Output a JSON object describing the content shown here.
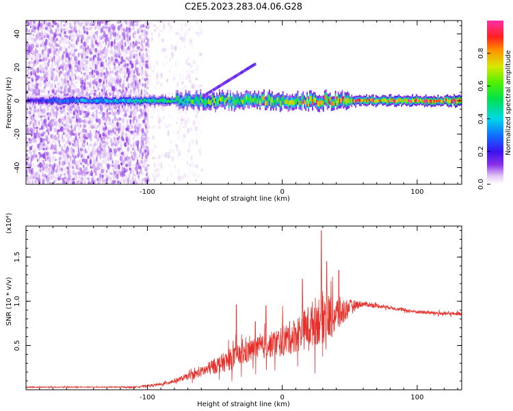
{
  "title": "C2E5.2023.283.04.06.G28",
  "chart_data": [
    {
      "type": "heatmap",
      "title": "C2E5.2023.283.04.06.G28",
      "xlabel": "Height of straight line (km)",
      "ylabel": "Frequency (Hz)",
      "xlim": [
        -190,
        133
      ],
      "ylim": [
        -50,
        48
      ],
      "x_ticks": [
        -100,
        0,
        100
      ],
      "x_tick_labels": [
        "-100",
        "0",
        "100"
      ],
      "y_ticks": [
        -40,
        -20,
        0,
        20,
        40
      ],
      "y_tick_labels": [
        "-40",
        "-20",
        "0",
        "20",
        "40"
      ],
      "grid": false,
      "colorbar": {
        "label": "Normalized spectral amplitude",
        "range": [
          0,
          1
        ],
        "ticks": [
          0.0,
          0.2,
          0.4,
          0.6,
          0.8
        ],
        "tick_labels": [
          "0.0",
          "0.2",
          "0.4",
          "0.6",
          "0.8"
        ],
        "colormap": "rainbow"
      },
      "features": [
        {
          "kind": "scattered-noise",
          "x_range": [
            -190,
            -100
          ],
          "y_range": [
            -50,
            48
          ],
          "amplitude": 0.05
        },
        {
          "kind": "sparse-noise",
          "x_range": [
            -100,
            -60
          ],
          "y_range": [
            -50,
            48
          ],
          "amplitude": 0.02
        },
        {
          "kind": "carrier-band",
          "x_range": [
            -190,
            133
          ],
          "center_hz": 0,
          "amplitude_start": 0.15,
          "amplitude_end": 0.9
        },
        {
          "kind": "oscillation",
          "x_range": [
            -60,
            -20
          ],
          "y_range": [
            2,
            22
          ],
          "amplitude": 0.12
        }
      ]
    },
    {
      "type": "line",
      "xlabel": "Height of straight line (km)",
      "ylabel": "SNR (10 * v/v)",
      "y_multiplier": "(x10⁴)",
      "xlim": [
        -190,
        133
      ],
      "ylim": [
        0,
        1.85
      ],
      "x_ticks": [
        -100,
        0,
        100
      ],
      "x_tick_labels": [
        "-100",
        "0",
        "100"
      ],
      "y_ticks": [
        0.5,
        1.0,
        1.5
      ],
      "y_tick_labels": [
        "0.5",
        "1.0",
        "1.5"
      ],
      "grid": false,
      "series_color": "#e8302a",
      "series": [
        {
          "x": [
            -190,
            -160,
            -130,
            -110,
            -90,
            -80,
            -70,
            -60,
            -50,
            -40,
            -30,
            -20,
            -10,
            0,
            10,
            20,
            25,
            30,
            35,
            40,
            45,
            50,
            60,
            70,
            80,
            90,
            100,
            110,
            120,
            133
          ],
          "y": [
            0.03,
            0.03,
            0.03,
            0.03,
            0.06,
            0.1,
            0.15,
            0.2,
            0.27,
            0.33,
            0.4,
            0.46,
            0.5,
            0.55,
            0.62,
            0.72,
            0.78,
            0.82,
            0.82,
            0.85,
            0.88,
            0.95,
            0.97,
            0.95,
            0.93,
            0.9,
            0.88,
            0.87,
            0.86,
            0.86
          ],
          "noise": [
            0.005,
            0.005,
            0.005,
            0.008,
            0.015,
            0.025,
            0.035,
            0.06,
            0.09,
            0.12,
            0.13,
            0.13,
            0.14,
            0.18,
            0.2,
            0.25,
            0.28,
            0.3,
            0.26,
            0.22,
            0.16,
            0.07,
            0.03,
            0.025,
            0.02,
            0.02,
            0.02,
            0.02,
            0.02,
            0.02
          ],
          "peaks": [
            [
              -34,
              0.96
            ],
            [
              -20,
              0.77
            ],
            [
              -12,
              0.95
            ],
            [
              15,
              1.25
            ],
            [
              29,
              1.8
            ],
            [
              33,
              1.45
            ],
            [
              42,
              1.35
            ]
          ]
        }
      ]
    }
  ]
}
